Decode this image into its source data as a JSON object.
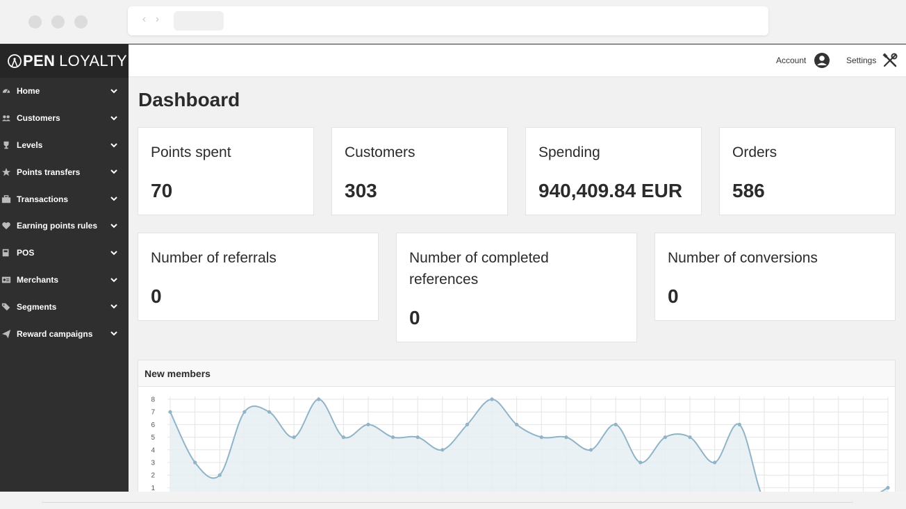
{
  "app": {
    "logo_bold": "PEN",
    "logo_light": "LOYALTY"
  },
  "sidebar": {
    "items": [
      {
        "label": "Home",
        "icon": "dashboard-icon"
      },
      {
        "label": "Customers",
        "icon": "users-icon"
      },
      {
        "label": "Levels",
        "icon": "trophy-icon"
      },
      {
        "label": "Points transfers",
        "icon": "star-icon"
      },
      {
        "label": "Transactions",
        "icon": "briefcase-icon"
      },
      {
        "label": "Earning points rules",
        "icon": "heart-icon"
      },
      {
        "label": "POS",
        "icon": "pos-icon"
      },
      {
        "label": "Merchants",
        "icon": "id-card-icon"
      },
      {
        "label": "Segments",
        "icon": "tags-icon"
      },
      {
        "label": "Reward campaigns",
        "icon": "paper-plane-icon"
      }
    ]
  },
  "topbar": {
    "account_label": "Account",
    "settings_label": "Settings"
  },
  "main": {
    "title": "Dashboard",
    "stats_row1": [
      {
        "label": "Points spent",
        "value": "70"
      },
      {
        "label": "Customers",
        "value": "303"
      },
      {
        "label": "Spending",
        "value": "940,409.84 EUR"
      },
      {
        "label": "Orders",
        "value": "586"
      }
    ],
    "stats_row2": [
      {
        "label": "Number of referrals",
        "value": "0"
      },
      {
        "label": "Number of completed references",
        "value": "0"
      },
      {
        "label": "Number of conversions",
        "value": "0"
      }
    ],
    "chart_title": "New members"
  },
  "colors": {
    "sidebar_bg": "#2f2f2f",
    "line": "#8fb4c8",
    "fill": "#e6eef3",
    "grid": "#e4e4e4"
  },
  "chart_data": {
    "type": "area",
    "title": "New members",
    "y_ticks": [
      1,
      2,
      3,
      4,
      5,
      6,
      7,
      8
    ],
    "ylim": [
      0,
      8
    ],
    "grid": true,
    "x_count": 30,
    "values": [
      7,
      3,
      2,
      7,
      7,
      5,
      8,
      5,
      6,
      5,
      5,
      4,
      6,
      8,
      6,
      5,
      5,
      4,
      6,
      3,
      5,
      5,
      3,
      6,
      0,
      0,
      0,
      0,
      0,
      1
    ]
  }
}
